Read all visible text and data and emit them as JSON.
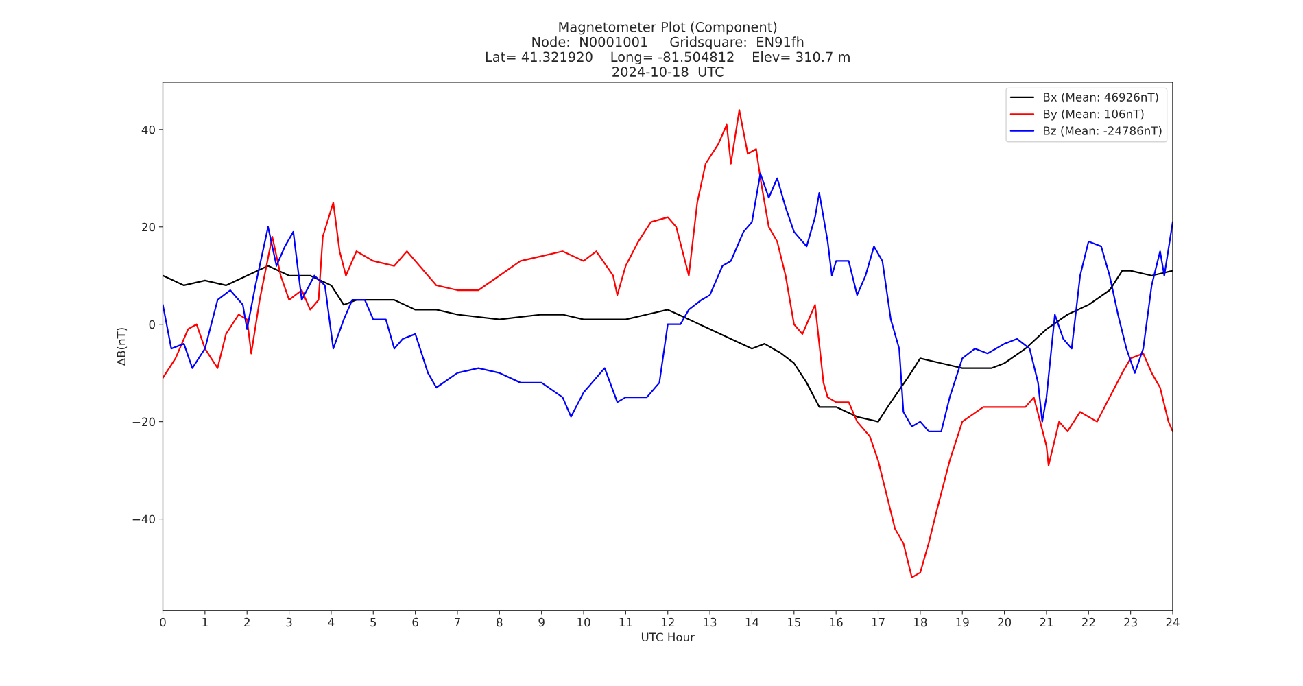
{
  "chart_data": {
    "type": "line",
    "title": "Magnetometer Plot (Component)\nNode:  N0001001     Gridsquare:  EN91fh\nLat= 41.321920    Long= -81.504812    Elev= 310.7 m\n2024-10-18  UTC",
    "xlabel": "UTC Hour",
    "ylabel": "ΔB(nT)",
    "xlim": [
      0,
      24
    ],
    "xticks": [
      0,
      1,
      2,
      3,
      4,
      5,
      6,
      7,
      8,
      9,
      10,
      11,
      12,
      13,
      14,
      15,
      16,
      17,
      18,
      19,
      20,
      21,
      22,
      23,
      24
    ],
    "ylim": [
      -58.8,
      49.7
    ],
    "yticks": [
      {
        "value": -40,
        "label": "−40"
      },
      {
        "value": -20,
        "label": "−20"
      },
      0,
      20,
      40
    ],
    "legend": "top right",
    "grid": false,
    "marker": "none",
    "line_style": "solid",
    "series": [
      {
        "name": "Bx (Mean: 46926nT)",
        "color": "#000000",
        "x": [
          0,
          0.5,
          1,
          1.5,
          2,
          2.5,
          3,
          3.5,
          4,
          4.3,
          4.6,
          5,
          5.5,
          6,
          6.5,
          7,
          8,
          9,
          9.5,
          10,
          11,
          11.5,
          12,
          12.5,
          13,
          13.5,
          14,
          14.3,
          14.7,
          15,
          15.3,
          15.6,
          16,
          16.5,
          17,
          17.3,
          17.7,
          18,
          18.5,
          19,
          19.3,
          19.7,
          20,
          20.5,
          21,
          21.5,
          22,
          22.5,
          22.8,
          23,
          23.5,
          24
        ],
        "values": [
          10,
          8,
          9,
          8,
          10,
          12,
          10,
          10,
          8,
          4,
          5,
          5,
          5,
          3,
          3,
          2,
          1,
          2,
          2,
          1,
          1,
          2,
          3,
          1,
          -1,
          -3,
          -5,
          -4,
          -6,
          -8,
          -12,
          -17,
          -17,
          -19,
          -20,
          -16,
          -11,
          -7,
          -8,
          -9,
          -9,
          -9,
          -8,
          -5,
          -1,
          2,
          4,
          7,
          11,
          11,
          10,
          11
        ]
      },
      {
        "name": "By (Mean: 106nT)",
        "color": "#ff0000",
        "x": [
          0,
          0.3,
          0.6,
          0.8,
          1,
          1.3,
          1.5,
          1.8,
          2,
          2.1,
          2.3,
          2.6,
          2.8,
          3,
          3.3,
          3.5,
          3.7,
          3.8,
          4.05,
          4.2,
          4.35,
          4.6,
          5,
          5.5,
          5.8,
          6.3,
          6.5,
          7,
          7.5,
          8,
          8.5,
          9,
          9.5,
          10,
          10.3,
          10.7,
          10.8,
          11,
          11.3,
          11.6,
          12,
          12.2,
          12.5,
          12.7,
          12.9,
          13.2,
          13.4,
          13.5,
          13.7,
          13.9,
          14.1,
          14.2,
          14.4,
          14.6,
          14.8,
          15,
          15.2,
          15.4,
          15.5,
          15.7,
          15.8,
          16,
          16.3,
          16.5,
          16.8,
          17,
          17.2,
          17.4,
          17.6,
          17.8,
          18,
          18.2,
          18.4,
          18.7,
          19,
          19.5,
          20,
          20.5,
          20.7,
          21,
          21.05,
          21.3,
          21.5,
          21.8,
          22.2,
          22.5,
          22.8,
          23,
          23.3,
          23.5,
          23.7,
          23.9,
          24
        ],
        "values": [
          -11,
          -7,
          -1,
          0,
          -5,
          -9,
          -2,
          2,
          1,
          -6,
          5,
          18,
          10,
          5,
          7,
          3,
          5,
          18,
          25,
          15,
          10,
          15,
          13,
          12,
          15,
          10,
          8,
          7,
          7,
          10,
          13,
          14,
          15,
          13,
          15,
          10,
          6,
          12,
          17,
          21,
          22,
          20,
          10,
          25,
          33,
          37,
          41,
          33,
          44,
          35,
          36,
          30,
          20,
          17,
          10,
          0,
          -2,
          2,
          4,
          -12,
          -15,
          -16,
          -16,
          -20,
          -23,
          -28,
          -35,
          -42,
          -45,
          -52,
          -51,
          -45,
          -38,
          -28,
          -20,
          -17,
          -17,
          -17,
          -15,
          -25,
          -29,
          -20,
          -22,
          -18,
          -20,
          -15,
          -10,
          -7,
          -6,
          -10,
          -13,
          -20,
          -22
        ]
      },
      {
        "name": "Bz (Mean: -24786nT)",
        "color": "#0000ff",
        "x": [
          0,
          0.2,
          0.5,
          0.7,
          1,
          1.3,
          1.6,
          1.9,
          2,
          2.2,
          2.5,
          2.7,
          2.9,
          3.1,
          3.3,
          3.6,
          3.85,
          4.05,
          4.3,
          4.5,
          4.8,
          5,
          5.3,
          5.5,
          5.7,
          6,
          6.3,
          6.5,
          7,
          7.5,
          8,
          8.5,
          9,
          9.5,
          9.7,
          10,
          10.2,
          10.5,
          10.8,
          11,
          11.5,
          11.8,
          12,
          12.3,
          12.5,
          12.8,
          13,
          13.3,
          13.5,
          13.8,
          14,
          14.2,
          14.4,
          14.6,
          14.8,
          15,
          15.3,
          15.5,
          15.6,
          15.8,
          15.9,
          16,
          16.3,
          16.5,
          16.7,
          16.9,
          17.1,
          17.3,
          17.5,
          17.6,
          17.8,
          18,
          18.2,
          18.5,
          18.7,
          19,
          19.3,
          19.6,
          20,
          20.3,
          20.6,
          20.8,
          20.9,
          21,
          21.2,
          21.4,
          21.6,
          21.8,
          22,
          22.3,
          22.5,
          22.7,
          22.9,
          23.1,
          23.3,
          23.5,
          23.7,
          23.8,
          24
        ],
        "values": [
          4,
          -5,
          -4,
          -9,
          -5,
          5,
          7,
          4,
          -1,
          8,
          20,
          12,
          16,
          19,
          5,
          10,
          8,
          -5,
          1,
          5,
          5,
          1,
          1,
          -5,
          -3,
          -2,
          -10,
          -13,
          -10,
          -9,
          -10,
          -12,
          -12,
          -15,
          -19,
          -14,
          -12,
          -9,
          -16,
          -15,
          -15,
          -12,
          0,
          0,
          3,
          5,
          6,
          12,
          13,
          19,
          21,
          31,
          26,
          30,
          24,
          19,
          16,
          22,
          27,
          17,
          10,
          13,
          13,
          6,
          10,
          16,
          13,
          1,
          -5,
          -18,
          -21,
          -20,
          -22,
          -22,
          -15,
          -7,
          -5,
          -6,
          -4,
          -3,
          -5,
          -12,
          -20,
          -15,
          2,
          -3,
          -5,
          10,
          17,
          16,
          10,
          2,
          -5,
          -10,
          -5,
          8,
          15,
          10,
          21
        ]
      }
    ]
  }
}
